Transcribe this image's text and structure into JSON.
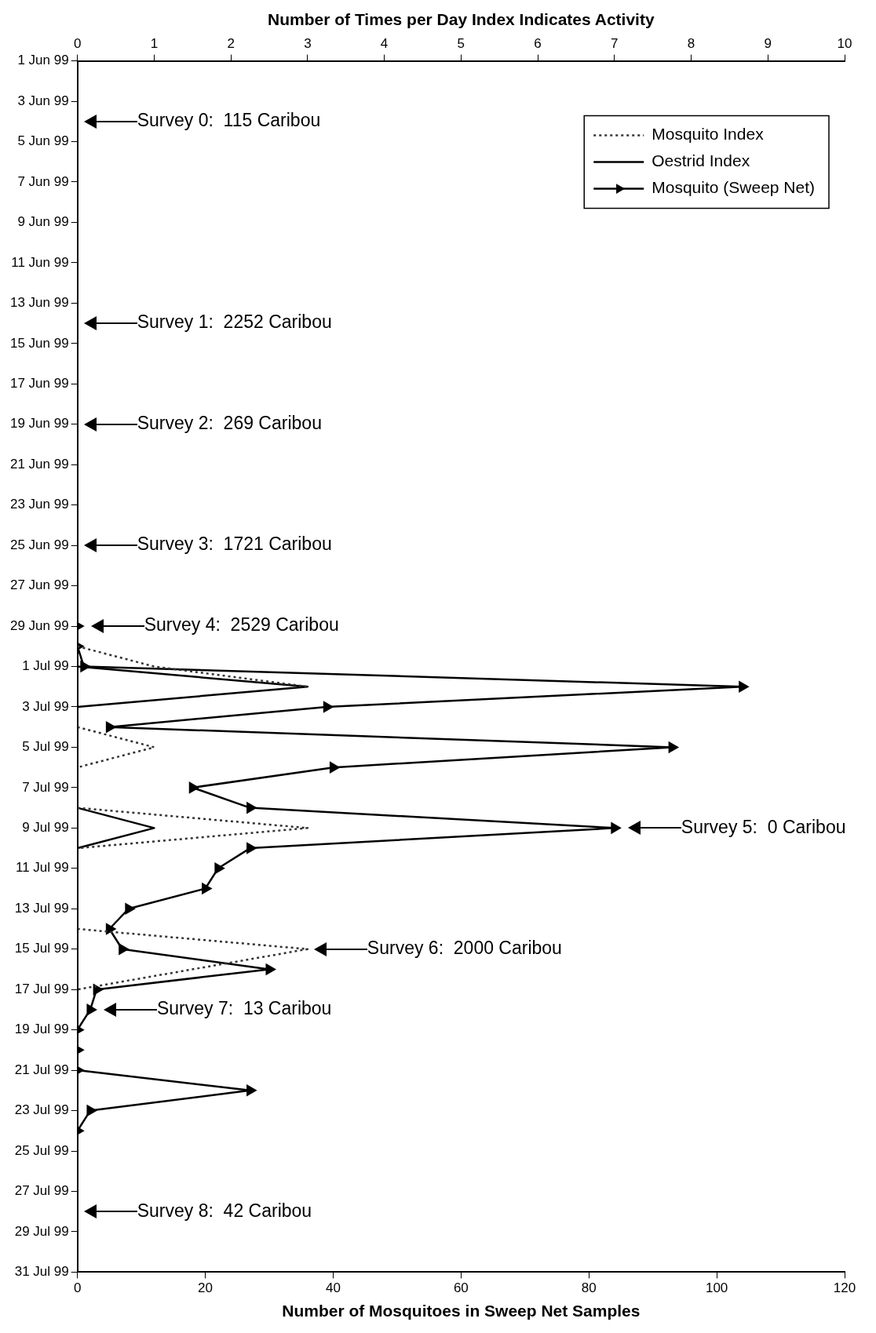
{
  "chart_data": {
    "type": "line",
    "orientation": "horizontal",
    "x2label": "Number of Times per Day Index Indicates Activity",
    "xlabel": "Number of Mosquitoes in Sweep Net Samples",
    "xlim": [
      0,
      120
    ],
    "xticks": [
      0,
      20,
      40,
      60,
      80,
      100,
      120
    ],
    "x2lim": [
      0,
      10
    ],
    "x2ticks": [
      0,
      1,
      2,
      3,
      4,
      5,
      6,
      7,
      8,
      9,
      10
    ],
    "ylim": [
      "1999-07-31",
      "1999-06-01"
    ],
    "yticks": [
      {
        "value": "1999-06-01",
        "label": "1 Jun 99"
      },
      {
        "value": "1999-06-03",
        "label": "3 Jun 99"
      },
      {
        "value": "1999-06-05",
        "label": "5 Jun 99"
      },
      {
        "value": "1999-06-07",
        "label": "7 Jun 99"
      },
      {
        "value": "1999-06-09",
        "label": "9 Jun 99"
      },
      {
        "value": "1999-06-11",
        "label": "11 Jun 99"
      },
      {
        "value": "1999-06-13",
        "label": "13 Jun 99"
      },
      {
        "value": "1999-06-15",
        "label": "15 Jun 99"
      },
      {
        "value": "1999-06-17",
        "label": "17 Jun 99"
      },
      {
        "value": "1999-06-19",
        "label": "19 Jun 99"
      },
      {
        "value": "1999-06-21",
        "label": "21 Jun 99"
      },
      {
        "value": "1999-06-23",
        "label": "23 Jun 99"
      },
      {
        "value": "1999-06-25",
        "label": "25 Jun 99"
      },
      {
        "value": "1999-06-27",
        "label": "27 Jun 99"
      },
      {
        "value": "1999-06-29",
        "label": "29 Jun 99"
      },
      {
        "value": "1999-07-01",
        "label": "1 Jul 99"
      },
      {
        "value": "1999-07-03",
        "label": "3 Jul 99"
      },
      {
        "value": "1999-07-05",
        "label": "5 Jul 99"
      },
      {
        "value": "1999-07-07",
        "label": "7 Jul 99"
      },
      {
        "value": "1999-07-09",
        "label": "9 Jul 99"
      },
      {
        "value": "1999-07-11",
        "label": "11 Jul 99"
      },
      {
        "value": "1999-07-13",
        "label": "13 Jul 99"
      },
      {
        "value": "1999-07-15",
        "label": "15 Jul 99"
      },
      {
        "value": "1999-07-17",
        "label": "17 Jul 99"
      },
      {
        "value": "1999-07-19",
        "label": "19 Jul 99"
      },
      {
        "value": "1999-07-21",
        "label": "21 Jul 99"
      },
      {
        "value": "1999-07-23",
        "label": "23 Jul 99"
      },
      {
        "value": "1999-07-25",
        "label": "25 Jul 99"
      },
      {
        "value": "1999-07-27",
        "label": "27 Jul 99"
      },
      {
        "value": "1999-07-29",
        "label": "29 Jul 99"
      },
      {
        "value": "1999-07-31",
        "label": "31 Jul 99"
      }
    ],
    "grid": false,
    "legend": "top right",
    "series": [
      {
        "name": "Mosquito Index",
        "color": "#333333",
        "axis": "x2",
        "line_style": "dotted",
        "marker": "none",
        "x": [
          "1999-06-30",
          "1999-07-01",
          "1999-07-02",
          "1999-07-03",
          "1999-07-04",
          "1999-07-05",
          "1999-07-06",
          "1999-07-07",
          "1999-07-08",
          "1999-07-09",
          "1999-07-10",
          "1999-07-11",
          "1999-07-14",
          "1999-07-15",
          "1999-07-17"
        ],
        "values": [
          0,
          1,
          3,
          null,
          0,
          1,
          0,
          null,
          0,
          3,
          0,
          null,
          0,
          3,
          0
        ]
      },
      {
        "name": "Oestrid Index",
        "color": "#000000",
        "axis": "x2",
        "line_style": "solid",
        "marker": "none",
        "x": [
          "1999-07-01",
          "1999-07-02",
          "1999-07-03",
          "1999-07-04",
          "1999-07-08",
          "1999-07-09",
          "1999-07-10"
        ],
        "values": [
          0,
          3,
          0,
          null,
          0,
          1,
          0
        ]
      },
      {
        "name": "Mosquito (Sweep Net)",
        "color": "#000000",
        "line_style": "solid",
        "marker": "triangle",
        "x": [
          "1999-06-29",
          "1999-06-30",
          "1999-07-01",
          "1999-07-02",
          "1999-07-03",
          "1999-07-04",
          "1999-07-05",
          "1999-07-06",
          "1999-07-07",
          "1999-07-08",
          "1999-07-09",
          "1999-07-10",
          "1999-07-11",
          "1999-07-12",
          "1999-07-13",
          "1999-07-14",
          "1999-07-15",
          "1999-07-16",
          "1999-07-17",
          "1999-07-18",
          "1999-07-19",
          "1999-07-20",
          "1999-07-21",
          "1999-07-22",
          "1999-07-23",
          "1999-07-24"
        ],
        "values": [
          0,
          0,
          1,
          104,
          39,
          5,
          93,
          40,
          18,
          27,
          84,
          27,
          22,
          20,
          8,
          5,
          7,
          30,
          3,
          2,
          0,
          0,
          0,
          27,
          2,
          0
        ]
      }
    ],
    "ref_lines": [
      {
        "axis": "y",
        "value": "1999-06-04",
        "label": "Survey 0:  115 Caribou"
      },
      {
        "axis": "y",
        "value": "1999-06-14",
        "label": "Survey 1:  2252 Caribou"
      },
      {
        "axis": "y",
        "value": "1999-06-19",
        "label": "Survey 2:  269 Caribou"
      },
      {
        "axis": "y",
        "value": "1999-06-25",
        "label": "Survey 3:  1721 Caribou"
      },
      {
        "axis": "y",
        "value": "1999-06-29",
        "label": "Survey 4:  2529 Caribou"
      },
      {
        "axis": "y",
        "value": "1999-07-09",
        "label": "Survey 5:  0 Caribou"
      },
      {
        "axis": "y",
        "value": "1999-07-15",
        "label": "Survey 6:  2000 Caribou"
      },
      {
        "axis": "y",
        "value": "1999-07-18",
        "label": "Survey 7:  13 Caribou"
      },
      {
        "axis": "y",
        "value": "1999-07-28",
        "label": "Survey 8:  42 Caribou"
      }
    ]
  }
}
